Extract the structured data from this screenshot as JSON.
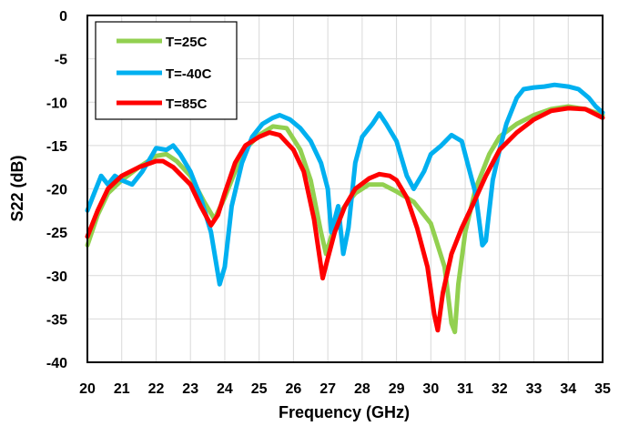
{
  "chart_data": {
    "type": "line",
    "title": "",
    "xlabel": "Frequency (GHz)",
    "ylabel": "S22 (dB)",
    "xlim": [
      20,
      35
    ],
    "ylim": [
      -40,
      0
    ],
    "x_ticks": [
      "20",
      "21",
      "22",
      "23",
      "24",
      "25",
      "26",
      "27",
      "28",
      "29",
      "30",
      "31",
      "32",
      "33",
      "34",
      "35"
    ],
    "y_ticks": [
      "0",
      "-5",
      "-10",
      "-15",
      "-20",
      "-25",
      "-30",
      "-35",
      "-40"
    ],
    "grid": true,
    "legend_position": "top-left",
    "series": [
      {
        "name": "T=25C",
        "color": "#92d050",
        "points": [
          [
            20.0,
            -26.5
          ],
          [
            20.3,
            -23.0
          ],
          [
            20.6,
            -20.5
          ],
          [
            21.0,
            -19.0
          ],
          [
            21.5,
            -17.5
          ],
          [
            22.0,
            -16.2
          ],
          [
            22.3,
            -16.0
          ],
          [
            22.6,
            -16.8
          ],
          [
            23.0,
            -18.5
          ],
          [
            23.4,
            -21.5
          ],
          [
            23.7,
            -23.5
          ],
          [
            24.0,
            -21.0
          ],
          [
            24.3,
            -18.0
          ],
          [
            24.7,
            -15.0
          ],
          [
            25.0,
            -13.8
          ],
          [
            25.4,
            -12.8
          ],
          [
            25.8,
            -13.0
          ],
          [
            26.2,
            -15.5
          ],
          [
            26.5,
            -19.0
          ],
          [
            26.8,
            -25.0
          ],
          [
            26.95,
            -27.5
          ],
          [
            27.1,
            -25.5
          ],
          [
            27.4,
            -22.5
          ],
          [
            27.8,
            -20.5
          ],
          [
            28.2,
            -19.5
          ],
          [
            28.6,
            -19.5
          ],
          [
            29.0,
            -20.3
          ],
          [
            29.5,
            -21.5
          ],
          [
            30.0,
            -24.0
          ],
          [
            30.4,
            -29.0
          ],
          [
            30.6,
            -35.5
          ],
          [
            30.7,
            -36.5
          ],
          [
            30.8,
            -31.0
          ],
          [
            31.0,
            -25.0
          ],
          [
            31.3,
            -20.0
          ],
          [
            31.7,
            -16.0
          ],
          [
            32.0,
            -14.0
          ],
          [
            32.5,
            -12.5
          ],
          [
            33.0,
            -11.5
          ],
          [
            33.5,
            -10.8
          ],
          [
            34.0,
            -10.5
          ],
          [
            34.5,
            -10.8
          ],
          [
            35.0,
            -11.5
          ]
        ]
      },
      {
        "name": "T=-40C",
        "color": "#00b0f0",
        "points": [
          [
            20.0,
            -22.5
          ],
          [
            20.2,
            -20.5
          ],
          [
            20.4,
            -18.5
          ],
          [
            20.6,
            -19.5
          ],
          [
            20.8,
            -18.5
          ],
          [
            21.0,
            -19.0
          ],
          [
            21.3,
            -19.5
          ],
          [
            21.6,
            -18.0
          ],
          [
            21.9,
            -16.0
          ],
          [
            22.0,
            -15.3
          ],
          [
            22.3,
            -15.5
          ],
          [
            22.5,
            -15.0
          ],
          [
            22.7,
            -16.0
          ],
          [
            23.0,
            -18.0
          ],
          [
            23.3,
            -21.0
          ],
          [
            23.6,
            -25.0
          ],
          [
            23.85,
            -31.0
          ],
          [
            24.0,
            -29.0
          ],
          [
            24.2,
            -22.0
          ],
          [
            24.5,
            -17.0
          ],
          [
            24.8,
            -14.0
          ],
          [
            25.1,
            -12.5
          ],
          [
            25.4,
            -11.8
          ],
          [
            25.6,
            -11.5
          ],
          [
            25.9,
            -12.0
          ],
          [
            26.2,
            -13.0
          ],
          [
            26.5,
            -14.5
          ],
          [
            26.8,
            -17.0
          ],
          [
            27.0,
            -20.0
          ],
          [
            27.1,
            -25.0
          ],
          [
            27.3,
            -22.0
          ],
          [
            27.45,
            -27.5
          ],
          [
            27.6,
            -24.5
          ],
          [
            27.8,
            -17.0
          ],
          [
            28.0,
            -14.0
          ],
          [
            28.3,
            -12.5
          ],
          [
            28.5,
            -11.3
          ],
          [
            28.7,
            -12.5
          ],
          [
            29.0,
            -14.5
          ],
          [
            29.3,
            -18.5
          ],
          [
            29.5,
            -20.0
          ],
          [
            29.8,
            -18.0
          ],
          [
            30.0,
            -16.0
          ],
          [
            30.3,
            -15.0
          ],
          [
            30.6,
            -13.8
          ],
          [
            30.9,
            -14.5
          ],
          [
            31.1,
            -17.5
          ],
          [
            31.3,
            -20.5
          ],
          [
            31.5,
            -26.5
          ],
          [
            31.6,
            -26.0
          ],
          [
            31.8,
            -19.0
          ],
          [
            32.0,
            -15.5
          ],
          [
            32.2,
            -12.5
          ],
          [
            32.5,
            -9.5
          ],
          [
            32.7,
            -8.5
          ],
          [
            33.0,
            -8.3
          ],
          [
            33.3,
            -8.2
          ],
          [
            33.6,
            -8.0
          ],
          [
            34.0,
            -8.2
          ],
          [
            34.3,
            -8.5
          ],
          [
            34.6,
            -9.5
          ],
          [
            34.8,
            -10.5
          ],
          [
            35.0,
            -11.2
          ]
        ]
      },
      {
        "name": "T=85C",
        "color": "#ff0000",
        "points": [
          [
            20.0,
            -25.5
          ],
          [
            20.3,
            -22.5
          ],
          [
            20.6,
            -20.0
          ],
          [
            21.0,
            -18.5
          ],
          [
            21.5,
            -17.5
          ],
          [
            22.0,
            -16.8
          ],
          [
            22.2,
            -16.8
          ],
          [
            22.5,
            -17.5
          ],
          [
            23.0,
            -19.5
          ],
          [
            23.3,
            -22.0
          ],
          [
            23.6,
            -24.2
          ],
          [
            23.8,
            -23.0
          ],
          [
            24.0,
            -20.5
          ],
          [
            24.3,
            -17.0
          ],
          [
            24.6,
            -15.0
          ],
          [
            25.0,
            -14.0
          ],
          [
            25.3,
            -13.5
          ],
          [
            25.6,
            -13.8
          ],
          [
            26.0,
            -15.5
          ],
          [
            26.3,
            -18.0
          ],
          [
            26.6,
            -23.5
          ],
          [
            26.85,
            -30.3
          ],
          [
            27.0,
            -28.0
          ],
          [
            27.2,
            -25.0
          ],
          [
            27.5,
            -22.0
          ],
          [
            27.8,
            -20.0
          ],
          [
            28.2,
            -18.8
          ],
          [
            28.5,
            -18.3
          ],
          [
            28.8,
            -18.5
          ],
          [
            29.0,
            -19.0
          ],
          [
            29.3,
            -21.0
          ],
          [
            29.6,
            -24.5
          ],
          [
            29.9,
            -29.0
          ],
          [
            30.1,
            -34.5
          ],
          [
            30.2,
            -36.3
          ],
          [
            30.35,
            -32.0
          ],
          [
            30.6,
            -27.5
          ],
          [
            30.9,
            -24.5
          ],
          [
            31.2,
            -22.0
          ],
          [
            31.6,
            -18.5
          ],
          [
            32.0,
            -15.5
          ],
          [
            32.5,
            -13.5
          ],
          [
            33.0,
            -12.0
          ],
          [
            33.5,
            -11.0
          ],
          [
            34.0,
            -10.7
          ],
          [
            34.5,
            -10.8
          ],
          [
            35.0,
            -11.8
          ]
        ]
      }
    ]
  }
}
